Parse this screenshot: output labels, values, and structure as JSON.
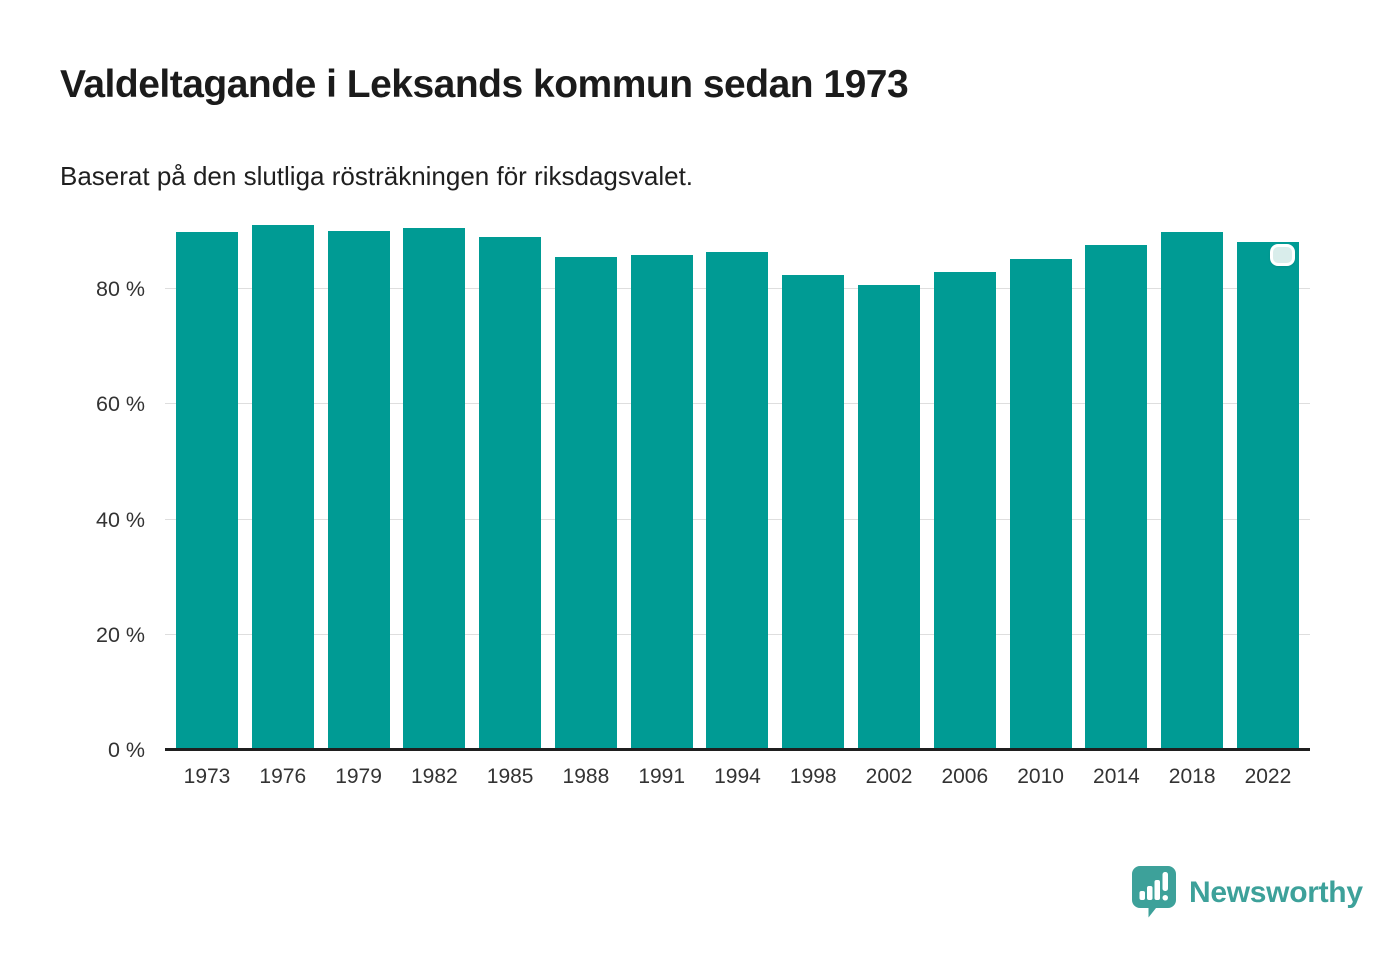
{
  "header": {
    "title": "Valdeltagande i Leksands kommun sedan 1973",
    "subtitle": "Baserat på den slutliga rösträkningen för riksdagsvalet."
  },
  "chart_data": {
    "type": "bar",
    "title": "Valdeltagande i Leksands kommun sedan 1973",
    "subtitle": "Baserat på den slutliga rösträkningen för riksdagsvalet.",
    "categories": [
      "1973",
      "1976",
      "1979",
      "1982",
      "1985",
      "1988",
      "1991",
      "1994",
      "1998",
      "2002",
      "2006",
      "2010",
      "2014",
      "2018",
      "2022"
    ],
    "values": [
      89.9,
      91.2,
      90.1,
      90.6,
      89.1,
      85.5,
      85.9,
      86.5,
      82.4,
      80.7,
      83.0,
      85.3,
      87.7,
      89.9,
      88.1
    ],
    "unit": "%",
    "xlabel": "",
    "ylabel": "",
    "ylim": [
      0,
      92
    ],
    "yticks": [
      {
        "value": 0,
        "label": "0 %"
      },
      {
        "value": 20,
        "label": "20 %"
      },
      {
        "value": 40,
        "label": "40 %"
      },
      {
        "value": 60,
        "label": "60 %"
      },
      {
        "value": 80,
        "label": "80 %"
      }
    ],
    "grid": "horizontal",
    "legend": "none",
    "bar_color": "#009B94",
    "highlight": {
      "category": "2022",
      "marker_fill": "#d9edeb",
      "marker_border": "#ffffff"
    }
  },
  "footer": {
    "brand": "Newsworthy",
    "brand_color": "#3da19a",
    "logo_icon": "newsworthy-speech-bubble-chart-icon"
  }
}
